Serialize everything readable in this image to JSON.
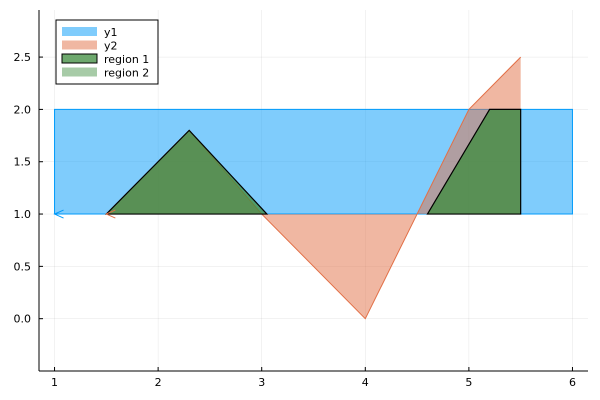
{
  "chart_data": {
    "type": "area",
    "title": "",
    "xlabel": "",
    "ylabel": "",
    "xlim": [
      0.85,
      6.15
    ],
    "ylim": [
      -0.5,
      2.95
    ],
    "x_ticks": [
      1,
      2,
      3,
      4,
      5,
      6
    ],
    "x_tick_labels": [
      "1",
      "2",
      "3",
      "4",
      "5",
      "6"
    ],
    "y_ticks": [
      0.0,
      0.5,
      1.0,
      1.5,
      2.0,
      2.5
    ],
    "y_tick_labels": [
      "0.0",
      "0.5",
      "1.0",
      "1.5",
      "2.0",
      "2.5"
    ],
    "grid": true,
    "legend_position": "top-left",
    "series": [
      {
        "name": "y1",
        "kind": "band",
        "color": "#009AFA",
        "x": [
          1,
          6
        ],
        "y_lower": [
          1.0,
          1.0
        ],
        "y_upper": [
          2.0,
          2.0
        ]
      },
      {
        "name": "y2",
        "kind": "filled-line",
        "color": "#E26F46",
        "baseline": 1.0,
        "x": [
          1.5,
          2.3,
          3.0,
          4.0,
          5.0,
          5.5
        ],
        "y": [
          1.0,
          1.8,
          1.0,
          0.0,
          2.0,
          2.5
        ]
      },
      {
        "name": "region 1",
        "kind": "polygon",
        "color": "#3C8B3C",
        "x": [
          1.5,
          2.3,
          3.05
        ],
        "y": [
          1.0,
          1.8,
          1.0
        ]
      },
      {
        "name": "region 2",
        "kind": "polygon",
        "color": "#3C8B3C",
        "x": [
          4.6,
          5.2,
          5.5,
          5.5
        ],
        "y": [
          1.0,
          2.0,
          2.0,
          1.0
        ]
      }
    ],
    "markers": [
      {
        "x": 1.0,
        "y": 1.0,
        "color": "#009AFA"
      },
      {
        "x": 1.5,
        "y": 1.0,
        "color": "#E26F46"
      }
    ]
  }
}
